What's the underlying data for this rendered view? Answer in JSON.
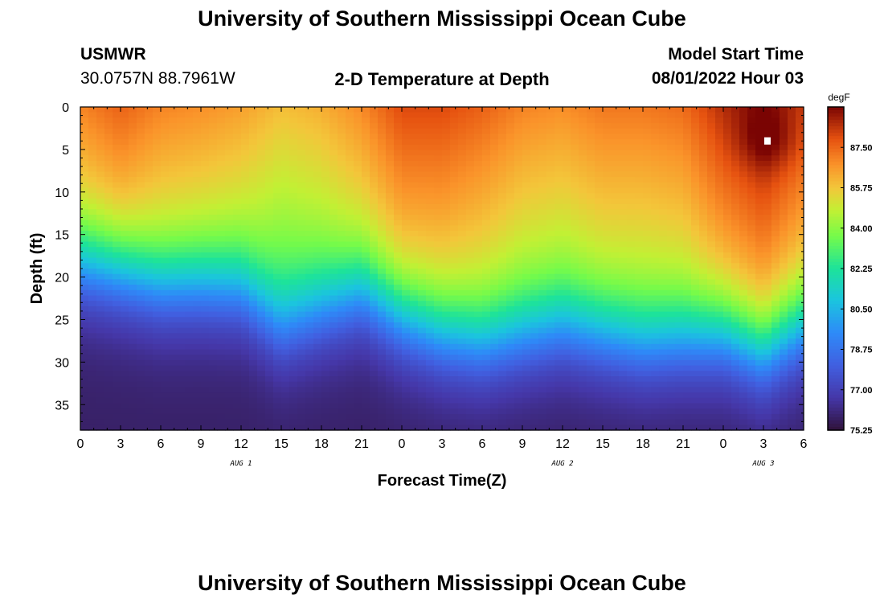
{
  "page": {
    "title_top": "University of Southern Mississippi Ocean Cube",
    "title_bottom": "University of Southern Mississippi Ocean Cube",
    "station": "USMWR",
    "coords": "30.0757N  88.7961W",
    "plot_title": "2-D Temperature at Depth",
    "model_start_label": "Model Start Time",
    "model_start_value": "08/01/2022 Hour 03"
  },
  "chart_data": {
    "type": "heatmap",
    "title": "2-D Temperature at Depth",
    "xlabel": "Forecast Time(Z)",
    "ylabel": "Depth (ft)",
    "x_range_hours": [
      0,
      54
    ],
    "y_range_ft": [
      0,
      38
    ],
    "x_tick_labels": [
      "0",
      "3",
      "6",
      "9",
      "12",
      "15",
      "18",
      "21",
      "0",
      "3",
      "6",
      "9",
      "12",
      "15",
      "18",
      "21",
      "0",
      "3",
      "6"
    ],
    "y_ticks": [
      0,
      5,
      10,
      15,
      20,
      25,
      30,
      35
    ],
    "date_labels": [
      {
        "label": "AUG 1",
        "hour": 12
      },
      {
        "label": "AUG 2",
        "hour": 36
      },
      {
        "label": "AUG 3",
        "hour": 51
      }
    ],
    "colorbar": {
      "unit": "degF",
      "min": 75.25,
      "max": 89.25,
      "ticks": [
        "87.50",
        "85.75",
        "84.00",
        "82.25",
        "80.50",
        "78.75",
        "77.00",
        "75.25"
      ],
      "tick_values": [
        87.5,
        85.75,
        84.0,
        82.25,
        80.5,
        78.75,
        77.0,
        75.25
      ]
    },
    "thermocline_depth_ft": [
      {
        "hour": 0,
        "depth": 18.5
      },
      {
        "hour": 3,
        "depth": 19.5
      },
      {
        "hour": 6,
        "depth": 21
      },
      {
        "hour": 9,
        "depth": 21
      },
      {
        "hour": 12,
        "depth": 21.5
      },
      {
        "hour": 15,
        "depth": 26
      },
      {
        "hour": 18,
        "depth": 24
      },
      {
        "hour": 21,
        "depth": 22
      },
      {
        "hour": 24,
        "depth": 25
      },
      {
        "hour": 27,
        "depth": 27
      },
      {
        "hour": 30,
        "depth": 28
      },
      {
        "hour": 33,
        "depth": 27
      },
      {
        "hour": 36,
        "depth": 26
      },
      {
        "hour": 39,
        "depth": 27
      },
      {
        "hour": 42,
        "depth": 28
      },
      {
        "hour": 45,
        "depth": 27.5
      },
      {
        "hour": 48,
        "depth": 27
      },
      {
        "hour": 51,
        "depth": 29
      },
      {
        "hour": 54,
        "depth": 26
      }
    ],
    "surface_temp_degF": [
      {
        "hour": 0,
        "value": 87.0
      },
      {
        "hour": 3,
        "value": 87.6
      },
      {
        "hour": 6,
        "value": 87.0
      },
      {
        "hour": 9,
        "value": 86.8
      },
      {
        "hour": 12,
        "value": 86.5
      },
      {
        "hour": 15,
        "value": 85.9
      },
      {
        "hour": 18,
        "value": 86.2
      },
      {
        "hour": 21,
        "value": 86.9
      },
      {
        "hour": 24,
        "value": 88.0
      },
      {
        "hour": 27,
        "value": 88.0
      },
      {
        "hour": 30,
        "value": 87.6
      },
      {
        "hour": 33,
        "value": 87.0
      },
      {
        "hour": 36,
        "value": 86.8
      },
      {
        "hour": 39,
        "value": 87.2
      },
      {
        "hour": 42,
        "value": 87.2
      },
      {
        "hour": 45,
        "value": 87.4
      },
      {
        "hour": 48,
        "value": 88.5
      },
      {
        "hour": 51,
        "value": 89.2
      },
      {
        "hour": 54,
        "value": 88.2
      }
    ],
    "bottom_temp_degF": 75.8,
    "marker": {
      "hour": 51.3,
      "depth_ft": 4
    }
  },
  "colors": {
    "background": "#ffffff",
    "text": "#000000",
    "marker": "#ffffff"
  }
}
